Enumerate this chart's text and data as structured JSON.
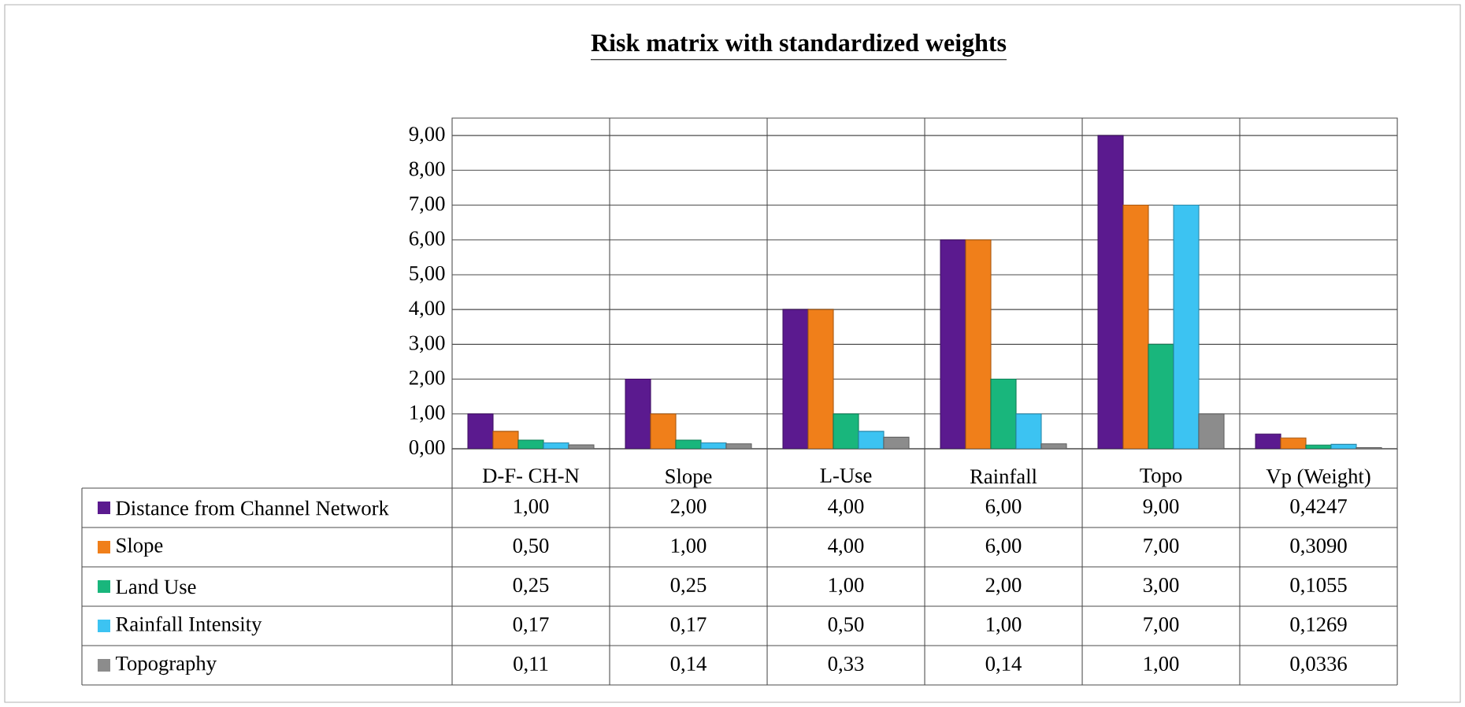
{
  "chart_data": {
    "type": "bar",
    "title": "**Risk matrix with standardized weights**",
    "categories": [
      "D-F- CH-N",
      "Slope",
      "L-Use",
      "Rainfall",
      "Topo",
      "Vp (Weight)"
    ],
    "series": [
      {
        "name": "Distance from Channel Network",
        "color": "#5b1a8f",
        "values": [
          1.0,
          2.0,
          4.0,
          6.0,
          9.0,
          0.4247
        ],
        "value_labels": [
          "1,00",
          "2,00",
          "4,00",
          "6,00",
          "9,00",
          "0,4247"
        ]
      },
      {
        "name": "Slope",
        "color": "#f07f1a",
        "values": [
          0.5,
          1.0,
          4.0,
          6.0,
          7.0,
          0.309
        ],
        "value_labels": [
          "0,50",
          "1,00",
          "4,00",
          "6,00",
          "7,00",
          "0,3090"
        ]
      },
      {
        "name": "Land Use",
        "color": "#19b67c",
        "values": [
          0.25,
          0.25,
          1.0,
          2.0,
          3.0,
          0.1055
        ],
        "value_labels": [
          "0,25",
          "0,25",
          "1,00",
          "2,00",
          "3,00",
          "0,1055"
        ]
      },
      {
        "name": "Rainfall Intensity",
        "color": "#3cc3f2",
        "values": [
          0.17,
          0.17,
          0.5,
          1.0,
          7.0,
          0.1269
        ],
        "value_labels": [
          "0,17",
          "0,17",
          "0,50",
          "1,00",
          "7,00",
          "0,1269"
        ]
      },
      {
        "name": "Topography",
        "color": "#8c8c8c",
        "values": [
          0.11,
          0.14,
          0.33,
          0.14,
          1.0,
          0.0336
        ],
        "value_labels": [
          "0,11",
          "0,14",
          "0,33",
          "0,14",
          "1,00",
          "0,0336"
        ]
      }
    ],
    "ylim": [
      0,
      9.5
    ],
    "yticks": [
      {
        "value": 0,
        "label": "0,00"
      },
      {
        "value": 1,
        "label": "1,00"
      },
      {
        "value": 2,
        "label": "2,00"
      },
      {
        "value": 3,
        "label": "3,00"
      },
      {
        "value": 4,
        "label": "4,00"
      },
      {
        "value": 5,
        "label": "5,00"
      },
      {
        "value": 6,
        "label": "6,00"
      },
      {
        "value": 7,
        "label": "7,00"
      },
      {
        "value": 8,
        "label": "8,00"
      },
      {
        "value": 9,
        "label": "9,00"
      }
    ],
    "grid": "y",
    "legend": "bottom"
  }
}
